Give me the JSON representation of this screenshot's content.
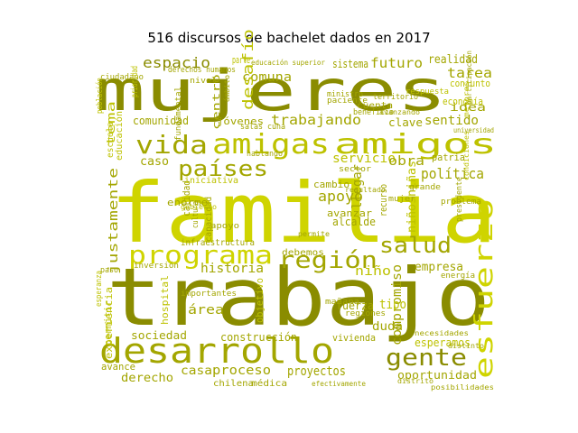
{
  "figure": {
    "title": "516 discursos de bachelet dados en 2017"
  },
  "palette": {
    "dark": "#8a8c00",
    "olive": "#a3a600",
    "mid": "#bdc200",
    "light": "#cfd400",
    "pale": "#dfe27a",
    "faint": "#c8c98a"
  },
  "word_cloud": {
    "words": [
      {
        "text": "mujeres",
        "color": "dark"
      },
      {
        "text": "familia",
        "color": "light"
      },
      {
        "text": "trabajo",
        "color": "dark"
      },
      {
        "text": "desarrollo",
        "color": "olive"
      },
      {
        "text": "amigas",
        "color": "mid"
      },
      {
        "text": "amigos",
        "color": "mid"
      },
      {
        "text": "vida",
        "color": "olive"
      },
      {
        "text": "países",
        "color": "olive"
      },
      {
        "text": "programa",
        "color": "light"
      },
      {
        "text": "región",
        "color": "olive"
      },
      {
        "text": "esfuerzo",
        "color": "light"
      },
      {
        "text": "gente",
        "color": "dark"
      },
      {
        "text": "salud",
        "color": "olive"
      },
      {
        "text": "espacio",
        "color": "dark"
      },
      {
        "text": "comuna",
        "color": "olive"
      },
      {
        "text": "futuro",
        "color": "olive"
      },
      {
        "text": "realidad",
        "color": "olive"
      },
      {
        "text": "tarea",
        "color": "olive"
      },
      {
        "text": "sistema",
        "color": "olive"
      },
      {
        "text": "desafío",
        "color": "mid"
      },
      {
        "text": "trabajando",
        "color": "olive"
      },
      {
        "text": "sentido",
        "color": "olive"
      },
      {
        "text": "comunidad",
        "color": "olive"
      },
      {
        "text": "centro",
        "color": "olive"
      },
      {
        "text": "jóvenes",
        "color": "olive"
      },
      {
        "text": "servicio",
        "color": "mid"
      },
      {
        "text": "política",
        "color": "olive"
      },
      {
        "text": "caso",
        "color": "olive"
      },
      {
        "text": "apoyo",
        "color": "olive"
      },
      {
        "text": "obra",
        "color": "olive"
      },
      {
        "text": "justamente",
        "color": "olive"
      },
      {
        "text": "llegar",
        "color": "olive"
      },
      {
        "text": "niñosniñas",
        "color": "mid"
      },
      {
        "text": "historia",
        "color": "olive"
      },
      {
        "text": "niño",
        "color": "mid"
      },
      {
        "text": "empresa",
        "color": "olive"
      },
      {
        "text": "compromiso",
        "color": "olive"
      },
      {
        "text": "tipo",
        "color": "mid"
      },
      {
        "text": "duda",
        "color": "olive"
      },
      {
        "text": "área",
        "color": "olive"
      },
      {
        "text": "sociedad",
        "color": "olive"
      },
      {
        "text": "construcción",
        "color": "olive"
      },
      {
        "text": "vivienda",
        "color": "olive"
      },
      {
        "text": "esperamos",
        "color": "mid"
      },
      {
        "text": "casa",
        "color": "olive"
      },
      {
        "text": "proceso",
        "color": "olive"
      },
      {
        "text": "proyectos",
        "color": "olive"
      },
      {
        "text": "derecho",
        "color": "olive"
      },
      {
        "text": "oportunidad",
        "color": "olive"
      },
      {
        "text": "hospital",
        "color": "mid"
      },
      {
        "text": "objetivo",
        "color": "mid"
      },
      {
        "text": "fuerza",
        "color": "olive"
      },
      {
        "text": "debemos",
        "color": "olive"
      },
      {
        "text": "infraestructura",
        "color": "olive"
      },
      {
        "text": "alcalde",
        "color": "olive"
      },
      {
        "text": "avanzar",
        "color": "olive"
      },
      {
        "text": "cambio",
        "color": "olive"
      },
      {
        "text": "tema",
        "color": "mid"
      },
      {
        "text": "clave",
        "color": "olive"
      },
      {
        "text": "idea",
        "color": "olive"
      },
      {
        "text": "economía",
        "color": "mid"
      },
      {
        "text": "conjunto",
        "color": "mid"
      },
      {
        "text": "patria",
        "color": "olive"
      },
      {
        "text": "calidad",
        "color": "olive"
      },
      {
        "text": "enorme",
        "color": "olive"
      },
      {
        "text": "capacidad",
        "color": "olive"
      },
      {
        "text": "recurso",
        "color": "olive"
      },
      {
        "text": "avance",
        "color": "olive"
      },
      {
        "text": "permitir",
        "color": "mid"
      },
      {
        "text": "experiencia",
        "color": "mid"
      },
      {
        "text": "energía",
        "color": "olive"
      },
      {
        "text": "mañana",
        "color": "olive"
      },
      {
        "text": "regiones",
        "color": "olive"
      },
      {
        "text": "importantes",
        "color": "olive"
      },
      {
        "text": "inversión",
        "color": "olive"
      },
      {
        "text": "cuenta",
        "color": "olive"
      },
      {
        "text": "ministro",
        "color": "olive"
      },
      {
        "text": "territorio",
        "color": "olive"
      },
      {
        "text": "iniciativa",
        "color": "mid"
      },
      {
        "text": "permite",
        "color": "olive"
      },
      {
        "text": "sector",
        "color": "olive"
      },
      {
        "text": "problema",
        "color": "olive"
      },
      {
        "text": "distrito",
        "color": "olive"
      },
      {
        "text": "médica",
        "color": "olive"
      },
      {
        "text": "chilena",
        "color": "olive"
      },
      {
        "text": "efectivamente",
        "color": "olive"
      },
      {
        "text": "escuela",
        "color": "mid"
      },
      {
        "text": "educación",
        "color": "mid"
      },
      {
        "text": "ciudadano",
        "color": "olive"
      },
      {
        "text": "ámbito",
        "color": "olive"
      },
      {
        "text": "derechos humanos",
        "color": "olive"
      },
      {
        "text": "educación superior",
        "color": "olive"
      },
      {
        "text": "parte",
        "color": "mid"
      },
      {
        "text": "nivel",
        "color": "olive"
      },
      {
        "text": "apoyo",
        "color": "olive"
      },
      {
        "text": "resultado",
        "color": "olive"
      },
      {
        "text": "necesidades",
        "color": "olive"
      },
      {
        "text": "distinto",
        "color": "olive"
      },
      {
        "text": "presidente",
        "color": "olive"
      },
      {
        "text": "paso",
        "color": "olive"
      },
      {
        "text": "grande",
        "color": "olive"
      },
      {
        "text": "paciente",
        "color": "olive"
      },
      {
        "text": "población",
        "color": "mid"
      },
      {
        "text": "beneficio",
        "color": "olive"
      },
      {
        "text": "prioridad",
        "color": "mid"
      },
      {
        "text": "hablando",
        "color": "olive"
      },
      {
        "text": "avanzando",
        "color": "olive"
      },
      {
        "text": "fundamental",
        "color": "olive"
      },
      {
        "text": "participación",
        "color": "olive"
      },
      {
        "text": "mejores",
        "color": "mid"
      },
      {
        "text": "condiciones",
        "color": "mid"
      },
      {
        "text": "universidad",
        "color": "olive"
      },
      {
        "text": "posibilidades",
        "color": "olive"
      },
      {
        "text": "salas cuna",
        "color": "olive"
      },
      {
        "text": "mujer",
        "color": "olive"
      },
      {
        "text": "respuesta",
        "color": "mid"
      },
      {
        "text": "gobierno",
        "color": "mid"
      },
      {
        "text": "cultura",
        "color": "olive"
      },
      {
        "text": "esperanza",
        "color": "mid"
      }
    ]
  }
}
